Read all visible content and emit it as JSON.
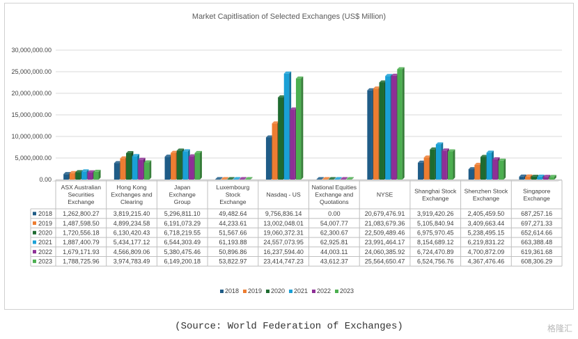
{
  "chart_data": {
    "type": "bar",
    "title": "Market Capitlisation of Selected Exchanges (US$ Million)",
    "xlabel": "",
    "ylabel": "",
    "ylim": [
      0,
      30000000
    ],
    "yticks": [
      "0.00",
      "5,000,000.00",
      "10,000,000.00",
      "15,000,000.00",
      "20,000,000.00",
      "25,000,000.00",
      "30,000,000.00"
    ],
    "grid": true,
    "legend_position": "bottom",
    "categories": [
      [
        "ASX Australian",
        "Securities",
        "Exchange"
      ],
      [
        "Hong Kong",
        "Exchanges and",
        "Clearing"
      ],
      [
        "Japan",
        "Exchange",
        "Group"
      ],
      [
        "Luxembourg",
        "Stock",
        "Exchange"
      ],
      [
        "Nasdaq - US"
      ],
      [
        "National Equities",
        "Exchange and",
        "Quotations"
      ],
      [
        "NYSE"
      ],
      [
        "Shanghai Stock",
        "Exchange"
      ],
      [
        "Shenzhen Stock",
        "Exchange"
      ],
      [
        "Singapore",
        "Exchange"
      ]
    ],
    "series": [
      {
        "name": "2018",
        "color": "#1f5c87",
        "values": [
          1262800.27,
          3819215.4,
          5296811.1,
          49482.64,
          9756836.14,
          0.0,
          20679476.91,
          3919420.26,
          2405459.5,
          687257.16
        ],
        "labels": [
          "1,262,800.27",
          "3,819,215.40",
          "5,296,811.10",
          "49,482.64",
          "9,756,836.14",
          "0.00",
          "20,679,476.91",
          "3,919,420.26",
          "2,405,459.50",
          "687,257.16"
        ]
      },
      {
        "name": "2019",
        "color": "#ed7d31",
        "values": [
          1487598.5,
          4899234.58,
          6191073.29,
          44233.61,
          13002048.01,
          54007.77,
          21083679.36,
          5105840.94,
          3409663.44,
          697271.33
        ],
        "labels": [
          "1,487,598.50",
          "4,899,234.58",
          "6,191,073.29",
          "44,233.61",
          "13,002,048.01",
          "54,007.77",
          "21,083,679.36",
          "5,105,840.94",
          "3,409,663.44",
          "697,271.33"
        ]
      },
      {
        "name": "2020",
        "color": "#1e6b30",
        "values": [
          1720556.18,
          6130420.43,
          6718219.55,
          51567.66,
          19060372.31,
          62300.67,
          22509489.46,
          6975970.45,
          5238495.15,
          652614.66
        ],
        "labels": [
          "1,720,556.18",
          "6,130,420.43",
          "6,718,219.55",
          "51,567.66",
          "19,060,372.31",
          "62,300.67",
          "22,509,489.46",
          "6,975,970.45",
          "5,238,495.15",
          "652,614.66"
        ]
      },
      {
        "name": "2021",
        "color": "#1aa0d6",
        "values": [
          1887400.79,
          5434177.12,
          6544303.49,
          61193.88,
          24557073.95,
          62925.81,
          23991464.17,
          8154689.12,
          6219831.22,
          663388.48
        ],
        "labels": [
          "1,887,400.79",
          "5,434,177.12",
          "6,544,303.49",
          "61,193.88",
          "24,557,073.95",
          "62,925.81",
          "23,991,464.17",
          "8,154,689.12",
          "6,219,831.22",
          "663,388.48"
        ]
      },
      {
        "name": "2022",
        "color": "#8e2f96",
        "values": [
          1679171.93,
          4566809.06,
          5380475.46,
          50896.86,
          16237594.4,
          44003.11,
          24060385.92,
          6724470.89,
          4700872.09,
          619361.68
        ],
        "labels": [
          "1,679,171.93",
          "4,566,809.06",
          "5,380,475.46",
          "50,896.86",
          "16,237,594.40",
          "44,003.11",
          "24,060,385.92",
          "6,724,470.89",
          "4,700,872.09",
          "619,361.68"
        ]
      },
      {
        "name": "2023",
        "color": "#4caf50",
        "values": [
          1788725.96,
          3974783.49,
          6149200.18,
          53822.97,
          23414747.23,
          43612.37,
          25564650.47,
          6524756.76,
          4367476.46,
          608306.29
        ],
        "labels": [
          "1,788,725.96",
          "3,974,783.49",
          "6,149,200.18",
          "53,822.97",
          "23,414,747.23",
          "43,612.37",
          "25,564,650.47",
          "6,524,756.76",
          "4,367,476.46",
          "608,306.29"
        ]
      }
    ]
  },
  "source": "(Source: World Federation of Exchanges)",
  "watermark": "格隆汇"
}
